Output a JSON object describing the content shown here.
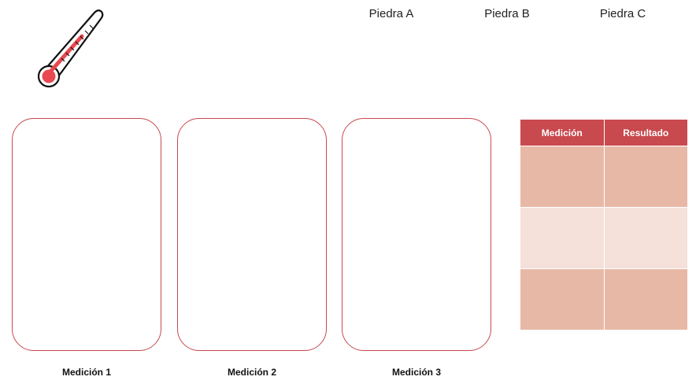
{
  "stones": {
    "a": "Piedra A",
    "b": "Piedra B",
    "c": "Piedra C"
  },
  "cards": {
    "label_1": "Medición 1",
    "label_2": "Medición 2",
    "label_3": "Medición 3"
  },
  "table": {
    "header_measurement": "Medición",
    "header_result": "Resultado",
    "rows": [
      {
        "measurement": "",
        "result": ""
      },
      {
        "measurement": "",
        "result": ""
      },
      {
        "measurement": "",
        "result": ""
      }
    ]
  },
  "icons": {
    "thermometer": "thermometer-icon"
  },
  "colors": {
    "accent": "#c8494e",
    "row_dark": "#e8b8a6",
    "row_light": "#f5e1da",
    "thermometer_fill": "#e8484f"
  }
}
